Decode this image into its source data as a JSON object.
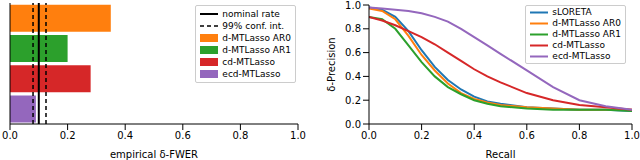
{
  "chart_data": [
    {
      "type": "bar",
      "orientation": "horizontal",
      "categories": [
        "d-MTLasso AR0",
        "d-MTLasso AR1",
        "cd-MTLasso",
        "ecd-MTLasso"
      ],
      "values": [
        0.35,
        0.2,
        0.28,
        0.09
      ],
      "colors": [
        "#ff7f0e",
        "#2ca02c",
        "#d62728",
        "#9467bd"
      ],
      "xlabel": "empirical δ-FWER",
      "xlim": [
        0,
        1
      ],
      "xticks": [
        {
          "value": 0,
          "label": "0.0"
        },
        {
          "value": 0.2,
          "label": "0.2"
        },
        {
          "value": 0.4,
          "label": "0.4"
        },
        {
          "value": 0.6,
          "label": "0.6"
        },
        {
          "value": 0.8,
          "label": "0.8"
        },
        {
          "value": 1,
          "label": "1.0"
        }
      ],
      "reference_lines": [
        {
          "name": "nominal rate",
          "values": [
            0.1
          ],
          "color": "#000000",
          "line_style": "solid"
        },
        {
          "name": "99% conf. int.",
          "values": [
            0.08,
            0.125
          ],
          "color": "#000000",
          "line_style": "dashed"
        }
      ],
      "tick_labels": "x",
      "legend": "upper right"
    },
    {
      "type": "line",
      "x": [
        0,
        0.05,
        0.1,
        0.15,
        0.2,
        0.25,
        0.3,
        0.35,
        0.4,
        0.45,
        0.5,
        0.6,
        0.7,
        0.8,
        0.9,
        1.0
      ],
      "series": [
        {
          "name": "sLORETA",
          "color": "#1f77b4",
          "values": [
            0.98,
            0.96,
            0.9,
            0.78,
            0.62,
            0.48,
            0.37,
            0.29,
            0.23,
            0.19,
            0.17,
            0.14,
            0.13,
            0.12,
            0.12,
            0.11
          ]
        },
        {
          "name": "d-MTLasso AR0",
          "color": "#ff7f0e",
          "values": [
            0.97,
            0.95,
            0.88,
            0.74,
            0.58,
            0.45,
            0.34,
            0.26,
            0.21,
            0.18,
            0.16,
            0.14,
            0.13,
            0.12,
            0.12,
            0.12
          ]
        },
        {
          "name": "d-MTLasso AR1",
          "color": "#2ca02c",
          "values": [
            0.9,
            0.88,
            0.8,
            0.66,
            0.52,
            0.4,
            0.31,
            0.25,
            0.2,
            0.17,
            0.15,
            0.13,
            0.12,
            0.12,
            0.12,
            0.11
          ]
        },
        {
          "name": "cd-MTLasso",
          "color": "#d62728",
          "values": [
            0.9,
            0.87,
            0.83,
            0.78,
            0.73,
            0.67,
            0.6,
            0.53,
            0.46,
            0.4,
            0.35,
            0.26,
            0.2,
            0.16,
            0.14,
            0.12
          ]
        },
        {
          "name": "ecd-MTLasso",
          "color": "#9467bd",
          "values": [
            0.98,
            0.97,
            0.96,
            0.95,
            0.93,
            0.9,
            0.86,
            0.8,
            0.73,
            0.66,
            0.59,
            0.45,
            0.31,
            0.2,
            0.15,
            0.12
          ]
        }
      ],
      "xlabel": "Recall",
      "ylabel": "δ-Precision",
      "xlim": [
        0,
        1
      ],
      "ylim": [
        0,
        1
      ],
      "xticks": [
        {
          "value": 0,
          "label": "0.0"
        },
        {
          "value": 0.2,
          "label": "0.2"
        },
        {
          "value": 0.4,
          "label": "0.4"
        },
        {
          "value": 0.6,
          "label": "0.6"
        },
        {
          "value": 0.8,
          "label": "0.8"
        },
        {
          "value": 1,
          "label": "1.0"
        }
      ],
      "yticks": [
        {
          "value": 0,
          "label": "0.0"
        },
        {
          "value": 0.2,
          "label": "0.2"
        },
        {
          "value": 0.4,
          "label": "0.4"
        },
        {
          "value": 0.6,
          "label": "0.6"
        },
        {
          "value": 0.8,
          "label": "0.8"
        },
        {
          "value": 1,
          "label": "1.0"
        }
      ],
      "legend": "upper right"
    }
  ]
}
